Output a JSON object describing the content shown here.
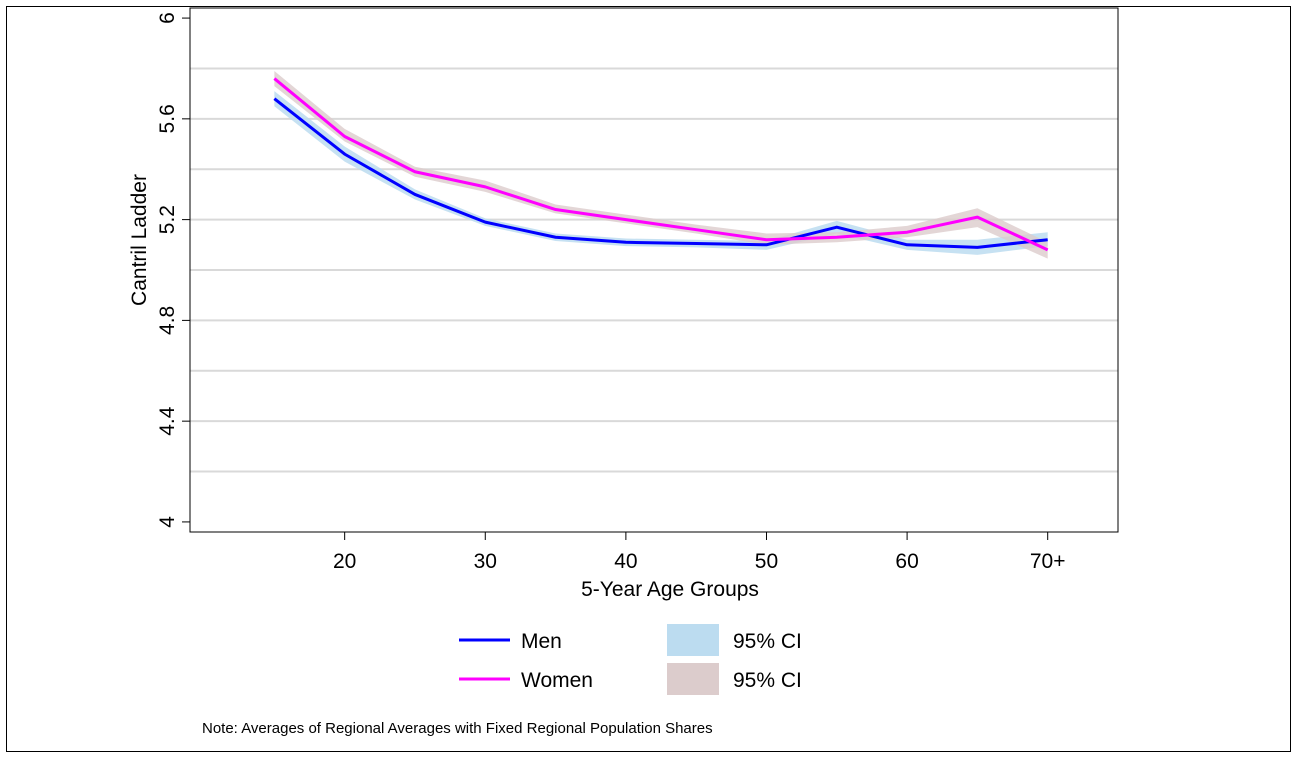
{
  "chart_data": {
    "type": "line",
    "xlabel": "5-Year Age Groups",
    "ylabel": "Cantril Ladder",
    "x": [
      15,
      20,
      25,
      30,
      35,
      40,
      45,
      50,
      55,
      60,
      65,
      70
    ],
    "xticks": [
      20,
      30,
      40,
      50,
      60,
      70
    ],
    "xtick_labels": [
      "20",
      "30",
      "40",
      "50",
      "60",
      "70+"
    ],
    "xlim": [
      9,
      75
    ],
    "yticks": [
      4,
      4.4,
      4.8,
      5.2,
      5.6,
      6
    ],
    "ytick_labels": [
      "4",
      "4.4",
      "4.8",
      "5.2",
      "5.6",
      "6"
    ],
    "ylim": [
      3.96,
      6.04
    ],
    "grid_y": [
      4.2,
      4.4,
      4.6,
      4.8,
      5.0,
      5.2,
      5.4,
      5.6,
      5.8
    ],
    "series": [
      {
        "name": "Men",
        "color": "#0000ff",
        "values": [
          5.68,
          5.46,
          5.3,
          5.19,
          5.13,
          5.11,
          5.105,
          5.1,
          5.17,
          5.1,
          5.09,
          5.12
        ],
        "ci_low": [
          5.65,
          5.43,
          5.28,
          5.175,
          5.115,
          5.095,
          5.09,
          5.08,
          5.145,
          5.08,
          5.06,
          5.095
        ],
        "ci_high": [
          5.71,
          5.49,
          5.32,
          5.205,
          5.145,
          5.125,
          5.12,
          5.115,
          5.195,
          5.12,
          5.12,
          5.15
        ],
        "ci_label": "95% CI",
        "ci_color": "#bcdcf0"
      },
      {
        "name": "Women",
        "color": "#ff00ff",
        "values": [
          5.76,
          5.53,
          5.39,
          5.33,
          5.24,
          5.2,
          5.16,
          5.12,
          5.13,
          5.15,
          5.21,
          5.08
        ],
        "ci_low": [
          5.73,
          5.51,
          5.37,
          5.31,
          5.225,
          5.185,
          5.145,
          5.1,
          5.11,
          5.13,
          5.17,
          5.045
        ],
        "ci_high": [
          5.79,
          5.56,
          5.41,
          5.355,
          5.26,
          5.22,
          5.18,
          5.145,
          5.15,
          5.175,
          5.245,
          5.11
        ],
        "ci_label": "95% CI",
        "ci_color": "#dccccc"
      }
    ],
    "legend_placement": "bottom",
    "note": "Note: Averages of Regional Averages with Fixed Regional Population Shares"
  }
}
